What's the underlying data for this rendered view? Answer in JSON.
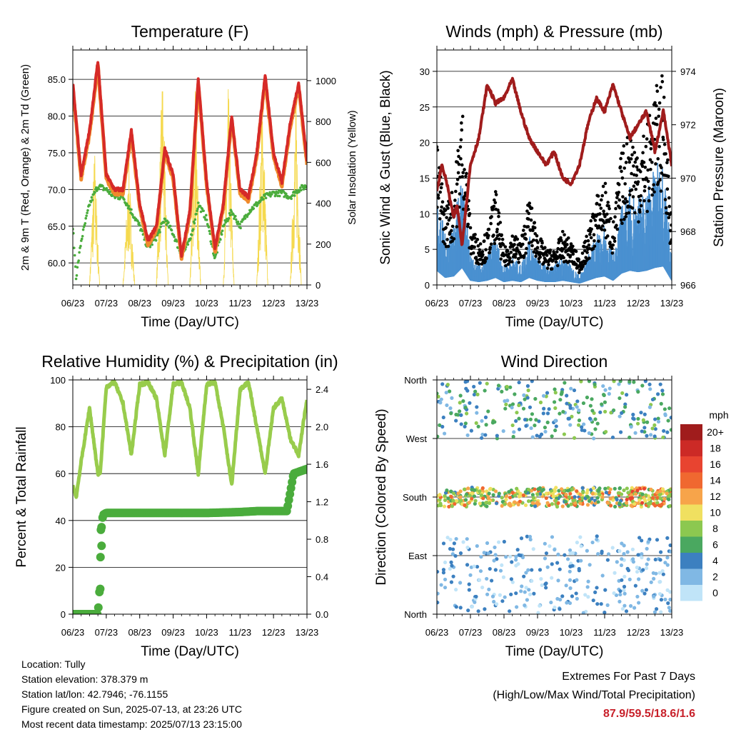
{
  "chart_data": [
    {
      "type": "line",
      "title": "Temperature (F)",
      "xlabel": "Time (Day/UTC)",
      "ylabel": "2m & 9m T (Red, Orange) & 2m Td (Green)",
      "y2label": "Solar Insolation (Yellow)",
      "x_ticks": [
        "06/23",
        "07/23",
        "08/23",
        "09/23",
        "10/23",
        "11/23",
        "12/23",
        "13/23"
      ],
      "ylim": [
        57,
        89
      ],
      "y_ticks": [
        "60.0",
        "65.0",
        "70.0",
        "75.0",
        "80.0",
        "85.0"
      ],
      "y2lim": [
        0,
        1150
      ],
      "y2_ticks": [
        "0",
        "200",
        "400",
        "600",
        "800",
        "1000"
      ],
      "series": [
        {
          "name": "2m T",
          "color": "#d62a28",
          "x": [
            6.0,
            6.25,
            6.5,
            6.75,
            7.0,
            7.25,
            7.5,
            7.75,
            8.0,
            8.25,
            8.5,
            8.75,
            9.0,
            9.25,
            9.5,
            9.75,
            10.0,
            10.25,
            10.5,
            10.75,
            11.0,
            11.25,
            11.5,
            11.75,
            12.0,
            12.25,
            12.5,
            12.75,
            13.0
          ],
          "values": [
            84.5,
            72,
            78,
            87.5,
            72,
            70,
            70,
            78,
            68,
            63,
            65,
            75.5,
            72,
            61,
            67,
            85,
            71,
            62,
            68,
            80,
            70,
            69,
            75,
            85.5,
            75,
            71,
            79,
            84.5,
            74
          ]
        },
        {
          "name": "9m T",
          "color": "#f08a2c",
          "x": [
            6.0,
            6.25,
            6.5,
            6.75,
            7.0,
            7.25,
            7.5,
            7.75,
            8.0,
            8.25,
            8.5,
            8.75,
            9.0,
            9.25,
            9.5,
            9.75,
            10.0,
            10.25,
            10.5,
            10.75,
            11.0,
            11.25,
            11.5,
            11.75,
            12.0,
            12.25,
            12.5,
            12.75,
            13.0
          ],
          "values": [
            84,
            71.5,
            77.5,
            87,
            71.5,
            69.5,
            69.5,
            77.5,
            67.5,
            62.5,
            64.5,
            75,
            71.5,
            60.5,
            66.5,
            84.5,
            70.5,
            61.5,
            67.5,
            79.5,
            69.5,
            68.5,
            74.5,
            85,
            74.5,
            70.5,
            78.5,
            84,
            73.5
          ]
        },
        {
          "name": "2m Td",
          "color": "#4aac3c",
          "x": [
            6.0,
            6.1,
            6.25,
            6.5,
            6.75,
            7.0,
            7.25,
            7.5,
            7.75,
            8.0,
            8.25,
            8.5,
            8.75,
            9.0,
            9.25,
            9.5,
            9.75,
            10.0,
            10.25,
            10.5,
            10.75,
            11.0,
            11.25,
            11.5,
            11.75,
            12.0,
            12.25,
            12.5,
            12.75,
            13.0
          ],
          "values": [
            65,
            58,
            63,
            68,
            70.5,
            70,
            69,
            69,
            67,
            65,
            62,
            63.5,
            66,
            64,
            61,
            63,
            68,
            66,
            60.5,
            65,
            67,
            65,
            67,
            68,
            69,
            69.5,
            69.5,
            69,
            70,
            70.5
          ]
        },
        {
          "name": "Solar Insolation",
          "axis": "y2",
          "color": "#f5d94e",
          "x": [
            6.0,
            6.5,
            6.65,
            6.8,
            7.0,
            7.5,
            7.68,
            7.85,
            8.0,
            8.5,
            8.68,
            8.85,
            9.0,
            9.5,
            9.65,
            9.82,
            10.0,
            10.5,
            10.65,
            10.82,
            11.0,
            11.5,
            11.67,
            11.83,
            12.0,
            12.5,
            12.67,
            12.83,
            13.0
          ],
          "values": [
            0,
            0,
            700,
            0,
            0,
            0,
            600,
            0,
            0,
            0,
            1100,
            0,
            0,
            0,
            1050,
            0,
            0,
            0,
            1000,
            0,
            0,
            0,
            1000,
            0,
            0,
            0,
            950,
            0,
            0
          ]
        }
      ]
    },
    {
      "type": "line",
      "title": "Winds (mph) & Pressure (mb)",
      "xlabel": "Time (Day/UTC)",
      "ylabel": "Sonic Wind & Gust (Blue, Black)",
      "y2label": "Station Pressure (Maroon)",
      "x_ticks": [
        "06/23",
        "07/23",
        "08/23",
        "09/23",
        "10/23",
        "11/23",
        "12/23",
        "13/23"
      ],
      "ylim": [
        0,
        33
      ],
      "y_ticks": [
        "0",
        "5",
        "10",
        "15",
        "20",
        "25",
        "30"
      ],
      "y2lim": [
        966,
        974.8
      ],
      "y2_ticks": [
        "966",
        "968",
        "970",
        "972",
        "974"
      ],
      "series": [
        {
          "name": "Sonic Wind",
          "color": "#4a90d0",
          "x": [
            6.0,
            6.25,
            6.5,
            6.75,
            7.0,
            7.25,
            7.5,
            7.75,
            8.0,
            8.25,
            8.5,
            8.75,
            9.0,
            9.25,
            9.5,
            9.75,
            10.0,
            10.25,
            10.5,
            10.75,
            11.0,
            11.25,
            11.5,
            11.75,
            12.0,
            12.25,
            12.5,
            12.75,
            13.0
          ],
          "values": [
            10,
            5,
            6,
            12,
            3,
            2,
            3,
            5,
            2,
            3,
            2,
            5,
            3,
            2,
            2,
            3,
            2,
            1,
            3,
            5,
            6,
            3,
            8,
            10,
            9,
            10,
            12,
            13,
            3
          ]
        },
        {
          "name": "Gust",
          "color": "#000000",
          "x": [
            6.0,
            6.25,
            6.5,
            6.75,
            7.0,
            7.25,
            7.5,
            7.75,
            8.0,
            8.25,
            8.5,
            8.75,
            9.0,
            9.25,
            9.5,
            9.75,
            10.0,
            10.25,
            10.5,
            10.75,
            11.0,
            11.25,
            11.5,
            11.75,
            12.0,
            12.25,
            12.5,
            12.75,
            13.0
          ],
          "values": [
            16,
            9,
            11,
            21,
            7,
            5,
            6,
            11,
            4,
            6,
            5,
            10,
            6,
            4,
            4,
            6,
            5,
            3,
            6,
            10,
            12,
            7,
            15,
            18,
            16,
            18,
            22,
            24,
            7
          ]
        },
        {
          "name": "Station Pressure",
          "axis": "y2",
          "color": "#a01c1c",
          "x": [
            6.0,
            6.15,
            6.3,
            6.5,
            6.6,
            6.75,
            7.0,
            7.25,
            7.5,
            7.75,
            8.0,
            8.25,
            8.5,
            8.75,
            9.0,
            9.25,
            9.5,
            9.75,
            10.0,
            10.25,
            10.5,
            10.75,
            11.0,
            11.25,
            11.5,
            11.75,
            12.0,
            12.25,
            12.5,
            12.75,
            13.0
          ],
          "values": [
            969.5,
            970.5,
            969.8,
            968.5,
            969.0,
            967.5,
            970.5,
            971.5,
            973.5,
            972.8,
            973.0,
            973.7,
            972.5,
            971.5,
            971.0,
            970.5,
            971.0,
            970.0,
            969.8,
            970.5,
            972.0,
            973.0,
            972.5,
            973.5,
            972.5,
            971.5,
            972.0,
            972.5,
            971.0,
            972.5,
            970.5
          ]
        }
      ]
    },
    {
      "type": "line",
      "title": "Relative Humidity (%) & Precipitation (in)",
      "xlabel": "Time (Day/UTC)",
      "ylabel": "Percent & Total Rainfall",
      "x_ticks": [
        "06/23",
        "07/23",
        "08/23",
        "09/23",
        "10/23",
        "11/23",
        "12/23",
        "13/23"
      ],
      "ylim": [
        0,
        100
      ],
      "y_ticks": [
        "0",
        "20",
        "40",
        "60",
        "80",
        "100"
      ],
      "y2lim": [
        0,
        2.5
      ],
      "y2_ticks": [
        "0.0",
        "0.4",
        "0.8",
        "1.2",
        "1.6",
        "2.0",
        "2.4"
      ],
      "series": [
        {
          "name": "Relative Humidity",
          "color": "#98cc4c",
          "x": [
            6.0,
            6.1,
            6.25,
            6.5,
            6.75,
            6.82,
            7.0,
            7.25,
            7.5,
            7.75,
            8.0,
            8.25,
            8.5,
            8.75,
            9.0,
            9.25,
            9.5,
            9.75,
            10.0,
            10.25,
            10.5,
            10.75,
            11.0,
            11.25,
            11.5,
            11.75,
            12.0,
            12.25,
            12.5,
            12.75,
            13.0
          ],
          "values": [
            55,
            50,
            65,
            88,
            60,
            60,
            97,
            99,
            90,
            68,
            98,
            99,
            92,
            68,
            98,
            99,
            88,
            60,
            98,
            99,
            80,
            55,
            96,
            99,
            80,
            60,
            88,
            92,
            75,
            68,
            92
          ]
        },
        {
          "name": "Total Rainfall",
          "axis": "y2",
          "color": "#4aac3c",
          "x": [
            6.0,
            6.3,
            6.5,
            6.75,
            6.8,
            6.85,
            6.9,
            7.0,
            8.0,
            9.0,
            10.0,
            11.0,
            11.5,
            12.0,
            12.4,
            12.5,
            12.6,
            13.0
          ],
          "values": [
            0.0,
            0.0,
            0.0,
            0.0,
            0.26,
            0.9,
            1.06,
            1.08,
            1.08,
            1.08,
            1.08,
            1.09,
            1.1,
            1.1,
            1.1,
            1.3,
            1.5,
            1.55
          ]
        }
      ]
    },
    {
      "type": "scatter",
      "title": "Wind Direction",
      "xlabel": "Time (Day/UTC)",
      "ylabel": "Direction (Colored By Speed)",
      "x_ticks": [
        "06/23",
        "07/23",
        "08/23",
        "09/23",
        "10/23",
        "11/23",
        "12/23",
        "13/23"
      ],
      "y_ticks": [
        "North",
        "East",
        "South",
        "West",
        "North"
      ],
      "colorbar": {
        "title": "mph",
        "labels": [
          "20+",
          "18",
          "16",
          "14",
          "12",
          "10",
          "8",
          "6",
          "4",
          "2",
          "0"
        ],
        "colors": [
          "#a01c1c",
          "#cc2a26",
          "#e84430",
          "#f06830",
          "#f7a44a",
          "#f0e060",
          "#8cc850",
          "#4aa860",
          "#3c80c0",
          "#80b8e4",
          "#c0e4f8"
        ]
      }
    }
  ],
  "info": {
    "location": "Location: Tully",
    "elevation": "Station elevation: 378.379 m",
    "latlon": "Station lat/lon: 42.7946; -76.1155",
    "created": "Figure created on Sun, 2025-07-13, at 23:26 UTC",
    "recent": "Most recent data timestamp: 2025/07/13 23:15:00"
  },
  "extremes": {
    "line1": "Extremes For Past 7 Days",
    "line2": "(High/Low/Max Wind/Total Precipitation)",
    "values": "87.9/59.5/18.6/1.6"
  }
}
